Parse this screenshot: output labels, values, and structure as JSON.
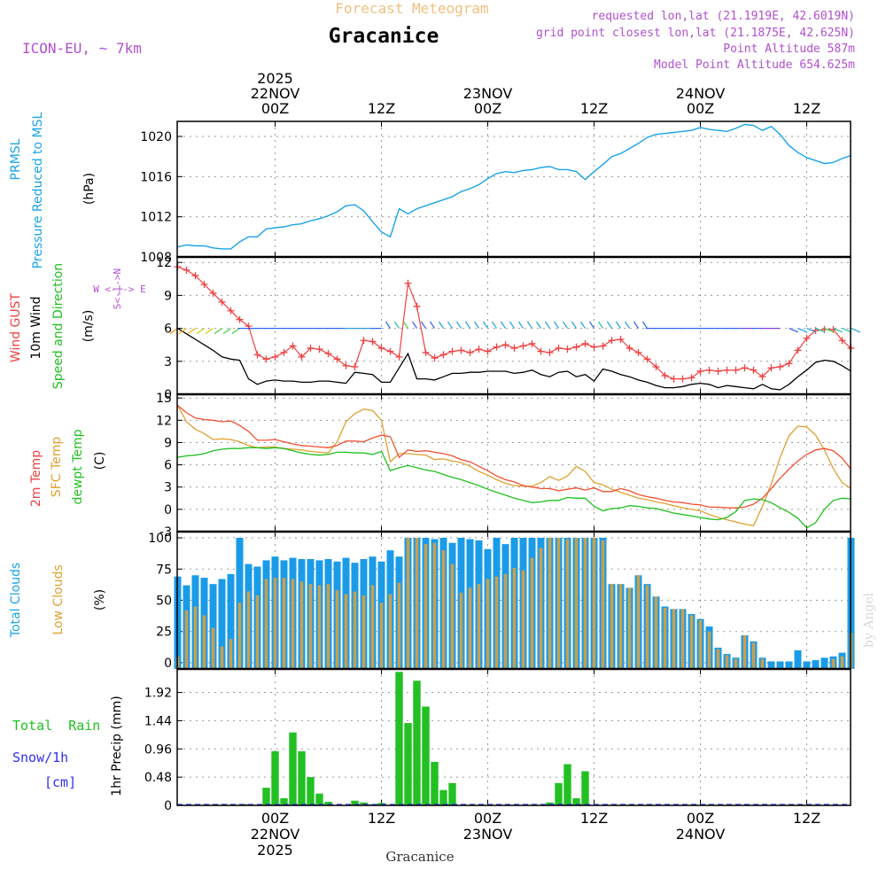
{
  "header": {
    "super_title": "Forecast Meteogram",
    "location": "Gracanice",
    "model": "ICON-EU, ~ 7km",
    "requested": "requested lon,lat (21.1919E, 42.6019N)",
    "grid_point": "grid point closest lon,lat (21.1875E, 42.625N)",
    "point_altitude": "Point Altitude 587m",
    "model_altitude": "Model Point Altitude 654.625m",
    "footer_location": "Gracanice",
    "watermark": "by Angel"
  },
  "time_axis": {
    "top": [
      {
        "hour": 12,
        "lines": [
          "2025",
          "22NOV",
          "00Z"
        ]
      },
      {
        "hour": 24,
        "lines": [
          "12Z"
        ]
      },
      {
        "hour": 36,
        "lines": [
          "23NOV",
          "00Z"
        ]
      },
      {
        "hour": 48,
        "lines": [
          "12Z"
        ]
      },
      {
        "hour": 60,
        "lines": [
          "24NOV",
          "00Z"
        ]
      },
      {
        "hour": 72,
        "lines": [
          "12Z"
        ]
      }
    ],
    "bottom": [
      {
        "hour": 12,
        "lines": [
          "00Z",
          "22NOV",
          "2025"
        ]
      },
      {
        "hour": 24,
        "lines": [
          "12Z"
        ]
      },
      {
        "hour": 36,
        "lines": [
          "00Z",
          "23NOV"
        ]
      },
      {
        "hour": 48,
        "lines": [
          "12Z"
        ]
      },
      {
        "hour": 60,
        "lines": [
          "00Z",
          "24NOV"
        ]
      },
      {
        "hour": 72,
        "lines": [
          "12Z"
        ]
      }
    ],
    "range_hours": [
      1,
      77
    ]
  },
  "colors": {
    "pressure": "#1aa3e8",
    "gust": "#f04040",
    "wind": "#000000",
    "temp2m": "#f05030",
    "sfc": "#e0a030",
    "dewpt": "#20c020",
    "total_cloud": "#1a9be8",
    "low_cloud": "#c8a050",
    "rain": "#22c022",
    "snow": "#3030f0",
    "meta": "#b050d0",
    "title_orange": "#f0c080"
  },
  "chart_data": [
    {
      "type": "line",
      "name": "pressure",
      "labels": [
        "PRMSL",
        "Pressure Reduced to MSL",
        "(hPa)"
      ],
      "yticks": [
        1008,
        1012,
        1016,
        1020
      ],
      "ylim": [
        1008,
        1021.5
      ],
      "x": [
        1,
        2,
        3,
        4,
        5,
        6,
        7,
        8,
        9,
        10,
        11,
        12,
        13,
        14,
        15,
        16,
        17,
        18,
        19,
        20,
        21,
        22,
        23,
        24,
        25,
        26,
        27,
        28,
        29,
        30,
        31,
        32,
        33,
        34,
        35,
        36,
        37,
        38,
        39,
        40,
        41,
        42,
        43,
        44,
        45,
        46,
        47,
        48,
        49,
        50,
        51,
        52,
        53,
        54,
        55,
        56,
        57,
        58,
        59,
        60,
        61,
        62,
        63,
        64,
        65,
        66,
        67,
        68,
        69,
        70,
        71,
        72,
        73,
        74,
        75,
        76,
        77
      ],
      "values": [
        1009,
        1009.2,
        1009.1,
        1009.1,
        1008.9,
        1008.8,
        1008.8,
        1009.5,
        1010,
        1010,
        1010.8,
        1010.9,
        1011,
        1011.2,
        1011.3,
        1011.6,
        1011.8,
        1012.1,
        1012.5,
        1013.1,
        1013.2,
        1012.6,
        1011.5,
        1010.5,
        1010,
        1012.8,
        1012.3,
        1012.8,
        1013.1,
        1013.4,
        1013.7,
        1014,
        1014.5,
        1014.8,
        1015.2,
        1015.8,
        1016.3,
        1016.5,
        1016.4,
        1016.6,
        1016.7,
        1016.9,
        1017,
        1016.7,
        1016.7,
        1016.5,
        1015.7,
        1016.5,
        1017.2,
        1018,
        1018.3,
        1018.8,
        1019.3,
        1019.9,
        1020.2,
        1020.3,
        1020.4,
        1020.5,
        1020.6,
        1020.9,
        1020.7,
        1020.6,
        1020.5,
        1020.8,
        1021.2,
        1021.1,
        1020.6,
        1021,
        1020.2,
        1019.1,
        1018.4,
        1017.9,
        1017.6,
        1017.3,
        1017.4,
        1017.8,
        1018.1
      ]
    },
    {
      "type": "line",
      "name": "wind",
      "labels": [
        "Wind GUST",
        "10m Wind",
        "Speed and Direction",
        "(m/s)"
      ],
      "compass": "W <-|-> E",
      "compass_vertical": "S<-|->N",
      "yticks": [
        0,
        3,
        6,
        9,
        12
      ],
      "ylim": [
        0,
        12.5
      ],
      "x": [
        1,
        2,
        3,
        4,
        5,
        6,
        7,
        8,
        9,
        10,
        11,
        12,
        13,
        14,
        15,
        16,
        17,
        18,
        19,
        20,
        21,
        22,
        23,
        24,
        25,
        26,
        27,
        28,
        29,
        30,
        31,
        32,
        33,
        34,
        35,
        36,
        37,
        38,
        39,
        40,
        41,
        42,
        43,
        44,
        45,
        46,
        47,
        48,
        49,
        50,
        51,
        52,
        53,
        54,
        55,
        56,
        57,
        58,
        59,
        60,
        61,
        62,
        63,
        64,
        65,
        66,
        67,
        68,
        69,
        70,
        71,
        72,
        73,
        74,
        75,
        76,
        77
      ],
      "gust": [
        11.6,
        11.3,
        10.8,
        10,
        9.2,
        8.4,
        7.6,
        6.8,
        6.2,
        3.6,
        3.2,
        3.4,
        3.8,
        4.4,
        3.4,
        4.2,
        4.1,
        3.7,
        3.2,
        2.6,
        2.5,
        4.9,
        4.8,
        4.2,
        3.9,
        3.4,
        10.1,
        8,
        3.8,
        3.3,
        3.6,
        3.9,
        4,
        3.8,
        4.1,
        3.9,
        4.3,
        4.5,
        4.2,
        4.4,
        4.6,
        3.9,
        3.8,
        4.2,
        4.1,
        4.3,
        4.6,
        4.3,
        4.4,
        4.9,
        5,
        4.2,
        3.8,
        3.2,
        2.5,
        1.7,
        1.4,
        1.4,
        1.5,
        2.1,
        2.2,
        2.1,
        2.2,
        2.2,
        2.4,
        2.2,
        1.6,
        2.4,
        2.5,
        2.8,
        4,
        5.1,
        5.8,
        5.9,
        5.9,
        4.9,
        4.2
      ],
      "speed": [
        6,
        5.5,
        5,
        4.5,
        4,
        3.4,
        3.2,
        3.1,
        1.4,
        0.9,
        1.2,
        1.3,
        1.2,
        1.2,
        1.1,
        1.1,
        1.2,
        1.2,
        1.1,
        1,
        2,
        1.9,
        1.8,
        1.1,
        1.1,
        2.4,
        3.7,
        1.4,
        1.4,
        1.3,
        1.6,
        1.9,
        1.9,
        2,
        2,
        2.1,
        2.1,
        2.1,
        1.9,
        2,
        2.2,
        1.8,
        1.6,
        2,
        2.1,
        1.6,
        1.8,
        1.2,
        2.3,
        2.1,
        1.8,
        1.6,
        1.3,
        1.1,
        0.8,
        0.6,
        0.6,
        0.7,
        0.9,
        1,
        0.9,
        0.6,
        0.8,
        0.7,
        0.6,
        0.5,
        0.9,
        0.5,
        0.4,
        0.9,
        1.6,
        2.2,
        2.9,
        3.1,
        3,
        2.6,
        2.1
      ]
    },
    {
      "type": "line",
      "name": "temperature",
      "labels": [
        "2m Temp",
        "SFC Temp",
        "dewpt Temp",
        "(C)"
      ],
      "yticks": [
        -3,
        0,
        3,
        6,
        9,
        12,
        15
      ],
      "ylim": [
        -3,
        15.5
      ],
      "x": [
        1,
        2,
        3,
        4,
        5,
        6,
        7,
        8,
        9,
        10,
        11,
        12,
        13,
        14,
        15,
        16,
        17,
        18,
        19,
        20,
        21,
        22,
        23,
        24,
        25,
        26,
        27,
        28,
        29,
        30,
        31,
        32,
        33,
        34,
        35,
        36,
        37,
        38,
        39,
        40,
        41,
        42,
        43,
        44,
        45,
        46,
        47,
        48,
        49,
        50,
        51,
        52,
        53,
        54,
        55,
        56,
        57,
        58,
        59,
        60,
        61,
        62,
        63,
        64,
        65,
        66,
        67,
        68,
        69,
        70,
        71,
        72,
        73,
        74,
        75,
        76,
        77
      ],
      "temp2m": [
        14,
        13,
        12.3,
        12.1,
        12,
        11.8,
        11.9,
        11.3,
        10.5,
        9.3,
        9.3,
        9.4,
        9.1,
        8.8,
        8.6,
        8.5,
        8.4,
        8.3,
        8.6,
        9.2,
        9.2,
        9.1,
        9.6,
        10,
        9.8,
        7,
        8,
        7.8,
        7.9,
        7.7,
        7.5,
        7.2,
        6.7,
        6.4,
        5.8,
        5.2,
        4.5,
        4,
        3.7,
        3.2,
        3,
        2.8,
        2.8,
        2.5,
        2.7,
        2.9,
        2.6,
        2.9,
        2.4,
        2.4,
        2.8,
        2.5,
        2,
        1.7,
        1.5,
        1.2,
        1,
        0.9,
        0.7,
        0.6,
        0.3,
        0.3,
        0.2,
        0.2,
        0.3,
        0.7,
        1.5,
        2.8,
        4.2,
        5.4,
        6.5,
        7.4,
        8,
        8.2,
        7.9,
        6.9,
        5.4
      ],
      "sfc": [
        14,
        11.8,
        10.8,
        10.2,
        9.4,
        9.5,
        9.4,
        9.1,
        8.6,
        8.3,
        8.4,
        8.4,
        8.2,
        8.1,
        8,
        7.8,
        7.7,
        7.6,
        9.1,
        11.8,
        12.9,
        13.5,
        13.3,
        12,
        6.4,
        7.5,
        7.5,
        7.4,
        7.3,
        6.7,
        6.8,
        6.5,
        6.3,
        5.8,
        5.1,
        4.6,
        4,
        3.5,
        3.2,
        3.1,
        3.1,
        3.6,
        4.4,
        3.9,
        4.5,
        5.8,
        5.1,
        3.6,
        3.3,
        2.7,
        2.3,
        1.9,
        1.5,
        1.3,
        1,
        0.8,
        0.5,
        0.2,
        0,
        -0.2,
        -0.7,
        -1.1,
        -1.4,
        -1.7,
        -2,
        -2.2,
        0.4,
        3.4,
        7,
        9.9,
        11.2,
        11.1,
        10,
        8,
        5.5,
        3.6,
        2.8
      ],
      "dewpt": [
        7,
        7.2,
        7.3,
        7.5,
        7.9,
        8.1,
        8.2,
        8.2,
        8.3,
        8.3,
        8.2,
        8.3,
        8.2,
        7.9,
        7.6,
        7.4,
        7.3,
        7.4,
        7.7,
        7.7,
        7.6,
        7.6,
        7.4,
        7.8,
        5.2,
        5.6,
        5.9,
        5.6,
        5.3,
        5.1,
        4.7,
        4.3,
        4,
        3.6,
        3.2,
        2.7,
        2.3,
        1.9,
        1.5,
        1.2,
        0.9,
        1,
        1.2,
        1.2,
        1.6,
        1.5,
        1.5,
        0.4,
        -0.2,
        0.1,
        0.2,
        0.5,
        0.4,
        0.2,
        0.1,
        -0.2,
        -0.5,
        -0.7,
        -0.9,
        -1.1,
        -1.3,
        -1.4,
        -1.1,
        -0.3,
        1.2,
        1.4,
        1.3,
        0.9,
        0.2,
        -0.4,
        -1.2,
        -2.5,
        -1.8,
        0,
        1.2,
        1.5,
        1.4
      ]
    },
    {
      "type": "bar",
      "name": "clouds",
      "labels": [
        "Total Clouds",
        "Low Clouds",
        "(%)"
      ],
      "yticks": [
        0,
        25,
        50,
        75,
        100
      ],
      "ylim": [
        -5,
        105
      ],
      "x": [
        1,
        2,
        3,
        4,
        5,
        6,
        7,
        8,
        9,
        10,
        11,
        12,
        13,
        14,
        15,
        16,
        17,
        18,
        19,
        20,
        21,
        22,
        23,
        24,
        25,
        26,
        27,
        28,
        29,
        30,
        31,
        32,
        33,
        34,
        35,
        36,
        37,
        38,
        39,
        40,
        41,
        42,
        43,
        44,
        45,
        46,
        47,
        48,
        49,
        50,
        51,
        52,
        53,
        54,
        55,
        56,
        57,
        58,
        59,
        60,
        61,
        62,
        63,
        64,
        65,
        66,
        67,
        68,
        69,
        70,
        71,
        72,
        73,
        74,
        75,
        76,
        77
      ],
      "total": [
        69,
        62,
        70,
        68,
        63,
        67,
        71,
        100,
        79,
        77,
        82,
        85,
        82,
        84,
        83,
        83,
        82,
        83,
        81,
        84,
        80,
        83,
        85,
        81,
        90,
        85,
        100,
        100,
        100,
        99,
        100,
        96,
        100,
        99,
        98,
        91,
        100,
        95,
        100,
        100,
        100,
        100,
        100,
        100,
        100,
        100,
        100,
        100,
        100,
        63,
        63,
        60,
        70,
        63,
        53,
        45,
        43,
        43,
        39,
        35,
        29,
        12,
        7,
        4,
        22,
        17,
        4,
        1,
        1,
        1,
        10,
        1,
        2,
        4,
        5,
        8,
        100
      ],
      "low": [
        5,
        42,
        45,
        38,
        28,
        13,
        19,
        48,
        57,
        54,
        67,
        68,
        68,
        67,
        65,
        63,
        62,
        63,
        58,
        55,
        57,
        54,
        62,
        48,
        55,
        64,
        100,
        100,
        95,
        96,
        90,
        79,
        56,
        60,
        63,
        67,
        69,
        71,
        76,
        74,
        84,
        92,
        100,
        100,
        99,
        100,
        100,
        100,
        98,
        63,
        63,
        60,
        70,
        62,
        53,
        44,
        43,
        43,
        38,
        34,
        25,
        11,
        6,
        3,
        22,
        16,
        3,
        0,
        0,
        0,
        0,
        0,
        0,
        0,
        3,
        5,
        24
      ]
    },
    {
      "type": "bar",
      "name": "precipitation",
      "labels": [
        "Total  Rain",
        "Snow/1h",
        "[cm]",
        "1hr Precip (mm)"
      ],
      "yticks": [
        0,
        0.48,
        0.96,
        1.44,
        1.92
      ],
      "ylim": [
        0,
        2.32
      ],
      "x": [
        1,
        2,
        3,
        4,
        5,
        6,
        7,
        8,
        9,
        10,
        11,
        12,
        13,
        14,
        15,
        16,
        17,
        18,
        19,
        20,
        21,
        22,
        23,
        24,
        25,
        26,
        27,
        28,
        29,
        30,
        31,
        32,
        33,
        34,
        35,
        36,
        37,
        38,
        39,
        40,
        41,
        42,
        43,
        44,
        45,
        46,
        47,
        48,
        49,
        50,
        51,
        52,
        53,
        54,
        55,
        56,
        57,
        58,
        59,
        60,
        61,
        62,
        63,
        64,
        65,
        66,
        67,
        68,
        69,
        70,
        71,
        72,
        73,
        74,
        75,
        76,
        77
      ],
      "rain": [
        0,
        0,
        0,
        0,
        0,
        0,
        0,
        0,
        0.02,
        0,
        0.3,
        0.92,
        0.12,
        1.24,
        0.92,
        0.48,
        0.2,
        0.06,
        0,
        0,
        0.08,
        0.05,
        0.02,
        0.04,
        0,
        2.27,
        1.4,
        2.12,
        1.68,
        0.74,
        0.26,
        0.38,
        0,
        0,
        0,
        0,
        0,
        0,
        0,
        0,
        0,
        0,
        0.05,
        0.38,
        0.7,
        0.12,
        0.58,
        0,
        0,
        0,
        0,
        0,
        0,
        0,
        0,
        0,
        0,
        0,
        0,
        0,
        0,
        0,
        0,
        0,
        0,
        0,
        0,
        0,
        0,
        0,
        0,
        0,
        0,
        0,
        0,
        0,
        0
      ],
      "snow": [
        0,
        0,
        0,
        0,
        0,
        0,
        0,
        0,
        0,
        0,
        0,
        0,
        0,
        0,
        0,
        0,
        0,
        0,
        0,
        0,
        0,
        0,
        0,
        0,
        0,
        0,
        0,
        0,
        0,
        0,
        0,
        0,
        0,
        0,
        0,
        0,
        0,
        0,
        0,
        0,
        0,
        0,
        0,
        0,
        0,
        0,
        0,
        0,
        0,
        0,
        0,
        0,
        0,
        0,
        0,
        0,
        0,
        0,
        0,
        0,
        0,
        0,
        0,
        0,
        0,
        0,
        0,
        0,
        0,
        0,
        0,
        0,
        0,
        0,
        0,
        0,
        0
      ]
    }
  ]
}
